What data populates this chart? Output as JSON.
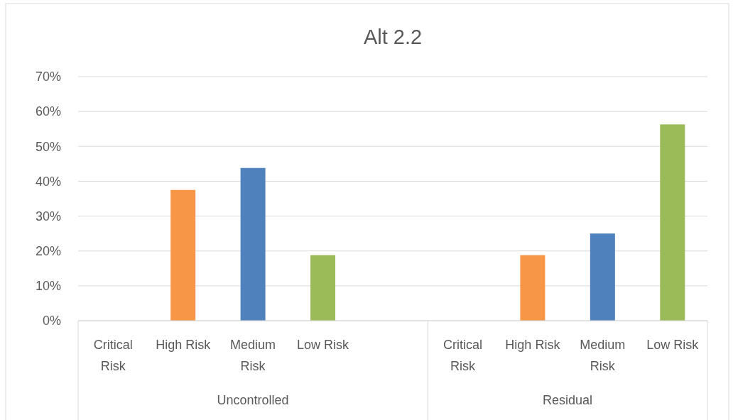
{
  "chart_data": {
    "type": "bar",
    "title": "Alt 2.2",
    "categories": [
      "Critical Risk",
      "High Risk",
      "Medium Risk",
      "Low Risk",
      null,
      "Critical Risk",
      "High Risk",
      "Medium Risk",
      "Low Risk"
    ],
    "values": [
      0,
      37.5,
      43.8,
      18.8,
      null,
      0,
      18.8,
      25,
      56.3
    ],
    "colors": [
      "#f79646",
      "#f79646",
      "#4f81bd",
      "#9bbb59",
      null,
      "#f79646",
      "#f79646",
      "#4f81bd",
      "#9bbb59"
    ],
    "ylim": [
      0,
      70
    ],
    "yticks": [
      {
        "value": 0,
        "label": "0%"
      },
      {
        "value": 10,
        "label": "10%"
      },
      {
        "value": 20,
        "label": "20%"
      },
      {
        "value": 30,
        "label": "30%"
      },
      {
        "value": 40,
        "label": "40%"
      },
      {
        "value": 50,
        "label": "50%"
      },
      {
        "value": 60,
        "label": "60%"
      },
      {
        "value": 70,
        "label": "70%"
      }
    ],
    "grid": "y",
    "annotations": [
      "Uncontrolled",
      "Residual"
    ]
  }
}
